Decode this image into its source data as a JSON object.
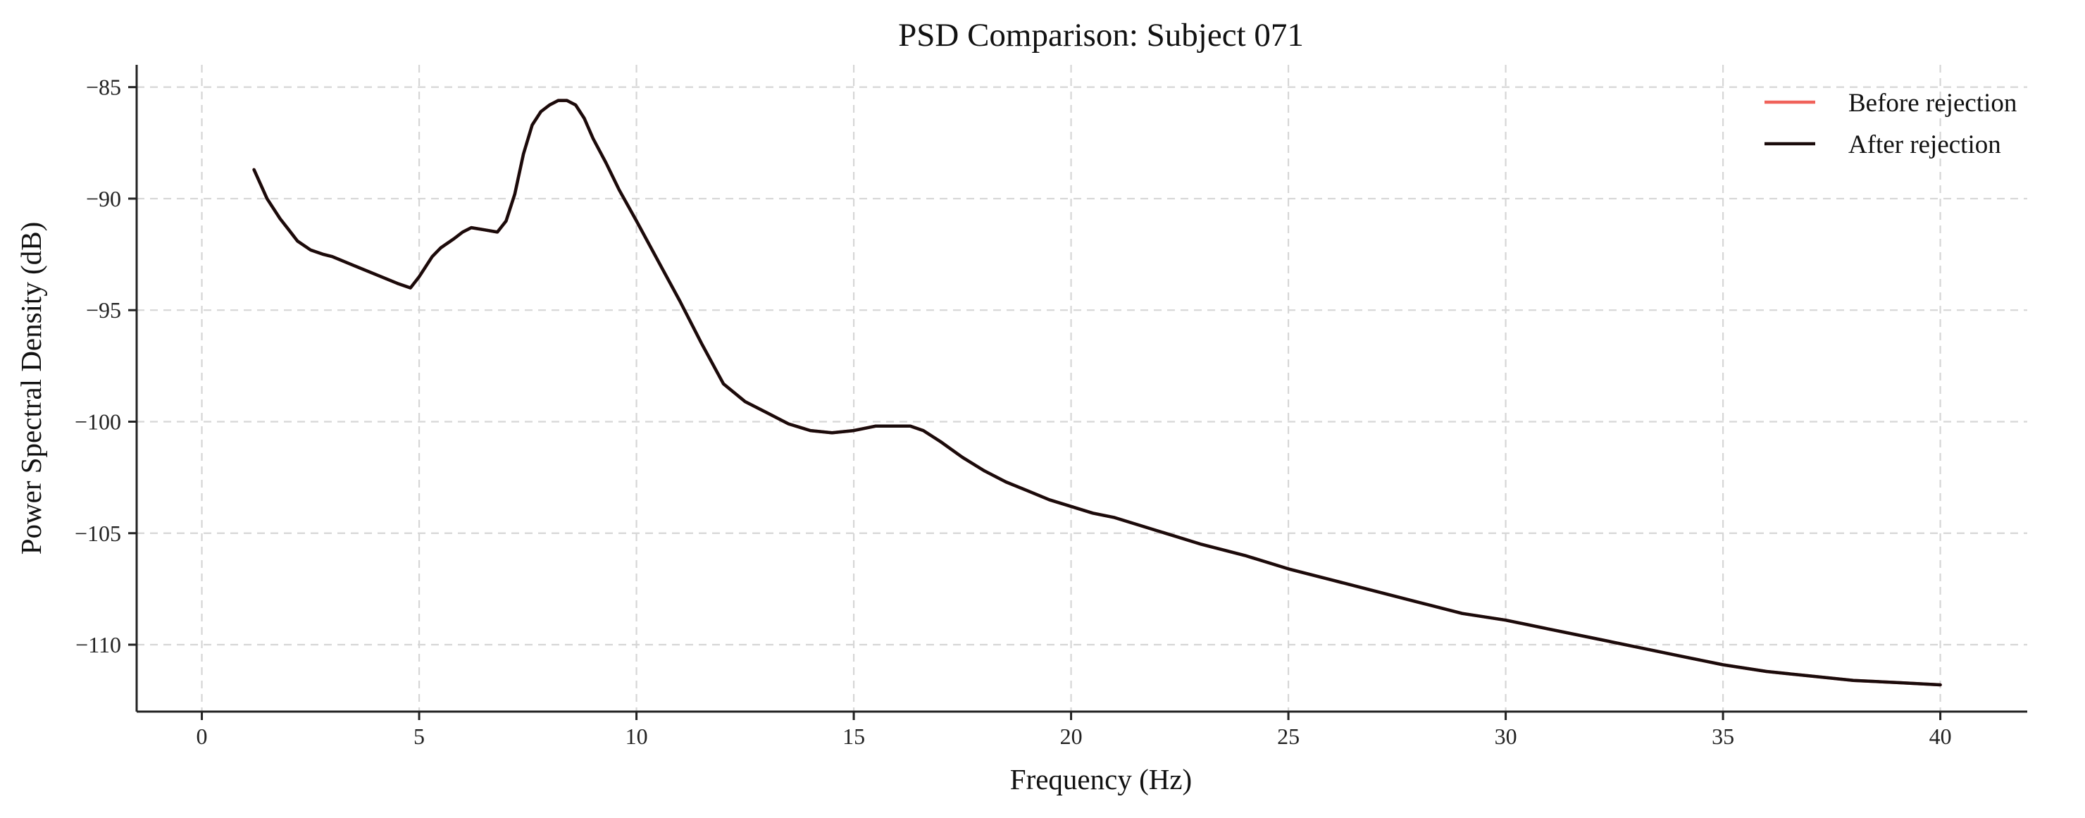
{
  "chart_data": {
    "type": "line",
    "title": "PSD Comparison: Subject 071",
    "xlabel": "Frequency (Hz)",
    "ylabel": "Power Spectral Density (dB)",
    "xlim": [
      -1.5,
      42
    ],
    "ylim": [
      -113.0,
      -84.0
    ],
    "xticks": [
      0,
      5,
      10,
      15,
      20,
      25,
      30,
      35,
      40
    ],
    "yticks": [
      -85,
      -90,
      -95,
      -100,
      -105,
      -110
    ],
    "xtick_labels": [
      "0",
      "5",
      "10",
      "15",
      "20",
      "25",
      "30",
      "35",
      "40"
    ],
    "ytick_labels": [
      "−85",
      "−90",
      "−95",
      "−100",
      "−105",
      "−110"
    ],
    "grid": true,
    "legend_position": "top-right",
    "x": [
      1.2,
      1.5,
      1.8,
      2.0,
      2.2,
      2.5,
      2.8,
      3.0,
      3.5,
      4.0,
      4.5,
      4.8,
      5.0,
      5.3,
      5.5,
      5.8,
      6.0,
      6.2,
      6.5,
      6.8,
      7.0,
      7.2,
      7.4,
      7.6,
      7.8,
      8.0,
      8.2,
      8.4,
      8.6,
      8.8,
      9.0,
      9.3,
      9.6,
      10.0,
      10.5,
      11.0,
      11.5,
      12.0,
      12.5,
      13.0,
      13.5,
      14.0,
      14.5,
      15.0,
      15.5,
      16.0,
      16.3,
      16.6,
      17.0,
      17.5,
      18.0,
      18.5,
      19.0,
      19.5,
      20.0,
      20.5,
      21.0,
      22.0,
      23.0,
      24.0,
      25.0,
      26.0,
      27.0,
      28.0,
      29.0,
      30.0,
      31.0,
      32.0,
      33.0,
      34.0,
      35.0,
      36.0,
      37.0,
      38.0,
      39.0,
      40.0
    ],
    "series": [
      {
        "name": "Before rejection",
        "color": "#f0625a",
        "values": [
          -88.7,
          -90.0,
          -90.9,
          -91.4,
          -91.9,
          -92.3,
          -92.5,
          -92.6,
          -93.0,
          -93.4,
          -93.8,
          -94.0,
          -93.5,
          -92.6,
          -92.2,
          -91.8,
          -91.5,
          -91.3,
          -91.4,
          -91.5,
          -91.0,
          -89.8,
          -88.0,
          -86.7,
          -86.1,
          -85.8,
          -85.6,
          -85.6,
          -85.8,
          -86.4,
          -87.3,
          -88.4,
          -89.6,
          -91.0,
          -92.8,
          -94.6,
          -96.5,
          -98.3,
          -99.1,
          -99.6,
          -100.1,
          -100.4,
          -100.5,
          -100.4,
          -100.2,
          -100.2,
          -100.2,
          -100.4,
          -100.9,
          -101.6,
          -102.2,
          -102.7,
          -103.1,
          -103.5,
          -103.8,
          -104.1,
          -104.3,
          -104.9,
          -105.5,
          -106.0,
          -106.6,
          -107.1,
          -107.6,
          -108.1,
          -108.6,
          -108.9,
          -109.3,
          -109.7,
          -110.1,
          -110.5,
          -110.9,
          -111.2,
          -111.4,
          -111.6,
          -111.7,
          -111.8
        ]
      },
      {
        "name": "After rejection",
        "color": "#1a0b0b",
        "values": [
          -88.7,
          -90.0,
          -90.9,
          -91.4,
          -91.9,
          -92.3,
          -92.5,
          -92.6,
          -93.0,
          -93.4,
          -93.8,
          -94.0,
          -93.5,
          -92.6,
          -92.2,
          -91.8,
          -91.5,
          -91.3,
          -91.4,
          -91.5,
          -91.0,
          -89.8,
          -88.0,
          -86.7,
          -86.1,
          -85.8,
          -85.6,
          -85.6,
          -85.8,
          -86.4,
          -87.3,
          -88.4,
          -89.6,
          -91.0,
          -92.8,
          -94.6,
          -96.5,
          -98.3,
          -99.1,
          -99.6,
          -100.1,
          -100.4,
          -100.5,
          -100.4,
          -100.2,
          -100.2,
          -100.2,
          -100.4,
          -100.9,
          -101.6,
          -102.2,
          -102.7,
          -103.1,
          -103.5,
          -103.8,
          -104.1,
          -104.3,
          -104.9,
          -105.5,
          -106.0,
          -106.6,
          -107.1,
          -107.6,
          -108.1,
          -108.6,
          -108.9,
          -109.3,
          -109.7,
          -110.1,
          -110.5,
          -110.9,
          -111.2,
          -111.4,
          -111.6,
          -111.7,
          -111.8
        ]
      }
    ]
  }
}
